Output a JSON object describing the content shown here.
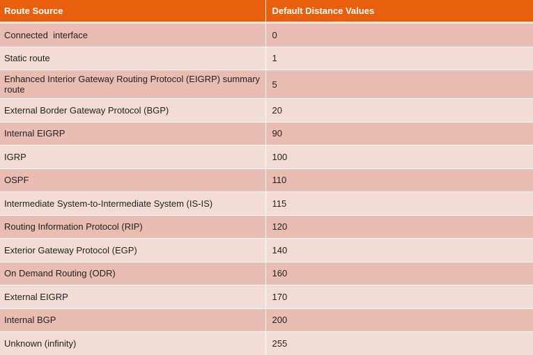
{
  "table": {
    "header": [
      "Route Source",
      "Default Distance Values"
    ],
    "rows": [
      [
        "Connected  interface",
        0
      ],
      [
        "Static route",
        1
      ],
      [
        "Enhanced Interior Gateway Routing Protocol (EIGRP) summary route",
        5
      ],
      [
        "External Border Gateway Protocol (BGP)",
        20
      ],
      [
        "Internal EIGRP",
        90
      ],
      [
        "IGRP",
        100
      ],
      [
        "OSPF",
        110
      ],
      [
        "Intermediate System-to-Intermediate System (IS-IS)",
        115
      ],
      [
        "Routing Information Protocol (RIP)",
        120
      ],
      [
        "Exterior Gateway Protocol (EGP)",
        140
      ],
      [
        "On Demand Routing (ODR)",
        160
      ],
      [
        "External EIGRP",
        170
      ],
      [
        "Internal BGP",
        200
      ],
      [
        "Unknown (infinity)",
        255
      ]
    ]
  }
}
